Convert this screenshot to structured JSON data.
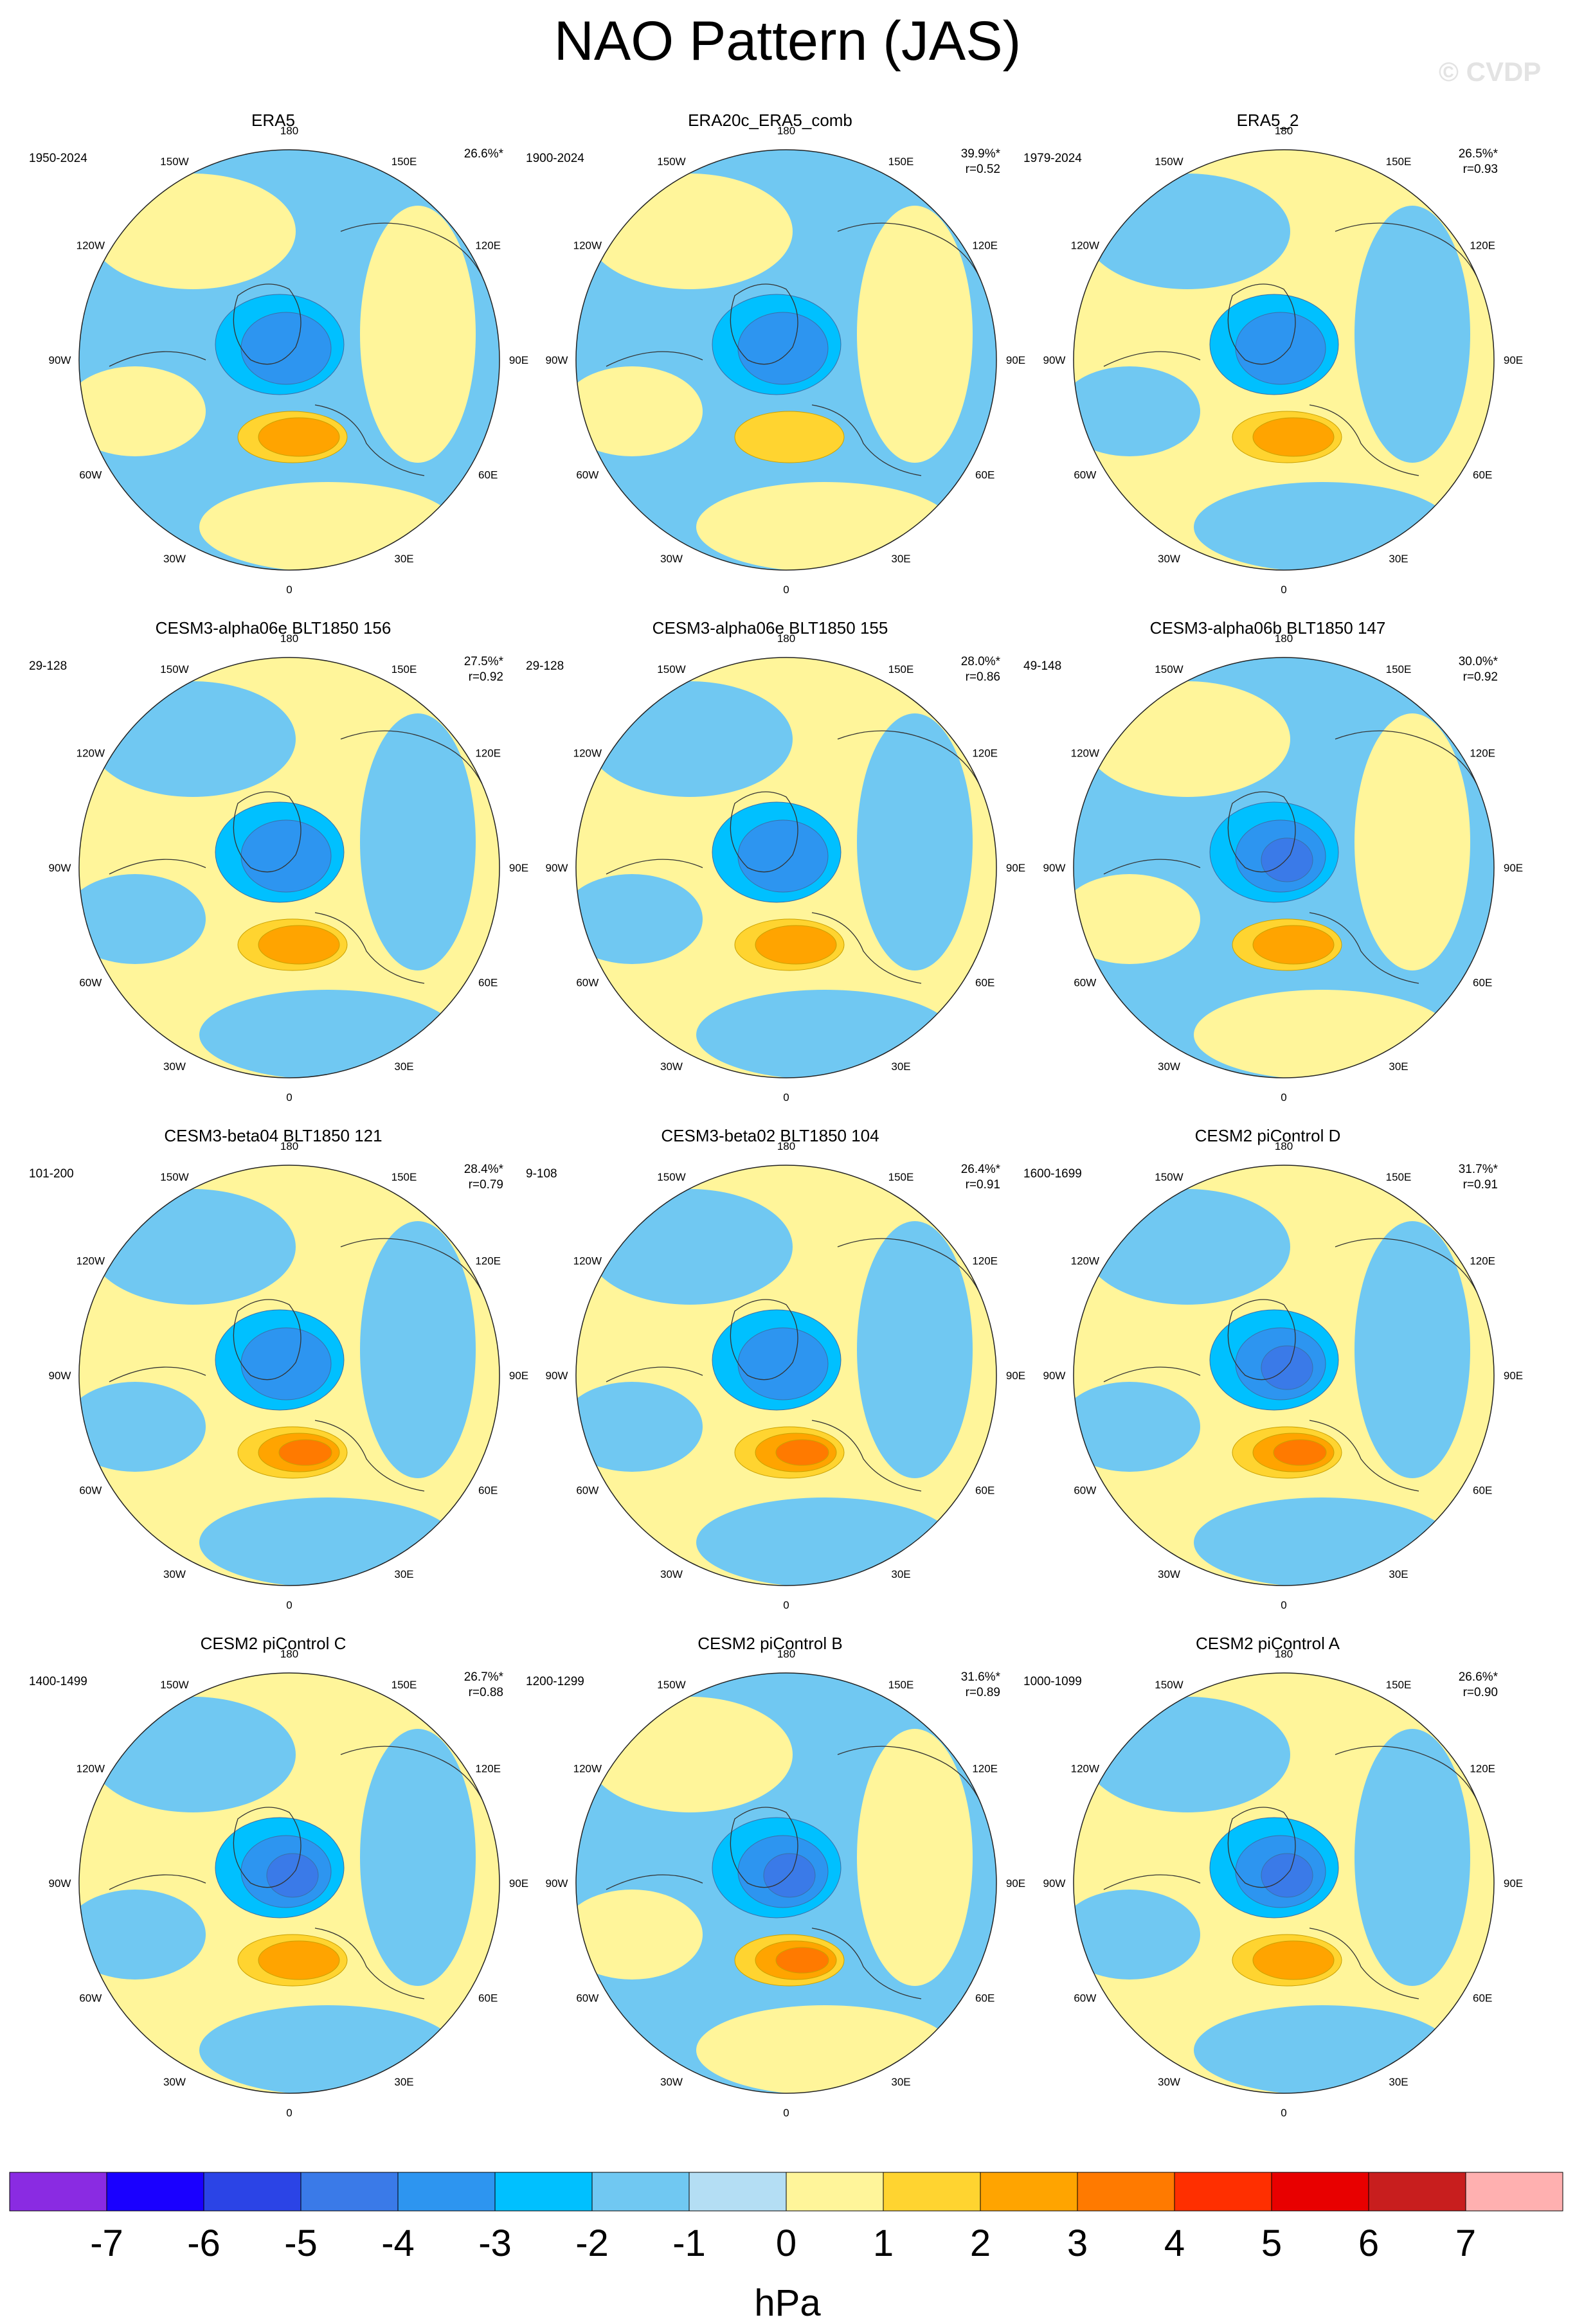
{
  "title": "NAO Pattern (JAS)",
  "watermark": "© CVDP",
  "lon_labels": [
    "180",
    "150E",
    "120E",
    "90E",
    "60E",
    "30E",
    "0",
    "30W",
    "60W",
    "90W",
    "120W",
    "150W"
  ],
  "panels": [
    {
      "title": "ERA5",
      "period": "1950-2024",
      "pct": "26.6%*",
      "r": "",
      "dominant": "blue",
      "min_level": -3,
      "max_level": 2
    },
    {
      "title": "ERA20c_ERA5_comb",
      "period": "1900-2024",
      "pct": "39.9%*",
      "r": "r=0.52",
      "dominant": "blue",
      "min_level": -3,
      "max_level": 1
    },
    {
      "title": "ERA5_2",
      "period": "1979-2024",
      "pct": "26.5%*",
      "r": "r=0.93",
      "dominant": "yellow",
      "min_level": -3,
      "max_level": 2
    },
    {
      "title": "CESM3-alpha06e BLT1850 156",
      "period": "29-128",
      "pct": "27.5%*",
      "r": "r=0.92",
      "dominant": "yellow",
      "min_level": -3,
      "max_level": 2
    },
    {
      "title": "CESM3-alpha06e BLT1850 155",
      "period": "29-128",
      "pct": "28.0%*",
      "r": "r=0.86",
      "dominant": "yellow",
      "min_level": -3,
      "max_level": 2
    },
    {
      "title": "CESM3-alpha06b BLT1850 147",
      "period": "49-148",
      "pct": "30.0%*",
      "r": "r=0.92",
      "dominant": "blue",
      "min_level": -4,
      "max_level": 2
    },
    {
      "title": "CESM3-beta04 BLT1850 121",
      "period": "101-200",
      "pct": "28.4%*",
      "r": "r=0.79",
      "dominant": "yellow",
      "min_level": -3,
      "max_level": 3
    },
    {
      "title": "CESM3-beta02 BLT1850 104",
      "period": "9-108",
      "pct": "26.4%*",
      "r": "r=0.91",
      "dominant": "yellow",
      "min_level": -3,
      "max_level": 3
    },
    {
      "title": "CESM2 piControl D",
      "period": "1600-1699",
      "pct": "31.7%*",
      "r": "r=0.91",
      "dominant": "yellow",
      "min_level": -4,
      "max_level": 3
    },
    {
      "title": "CESM2 piControl C",
      "period": "1400-1499",
      "pct": "26.7%*",
      "r": "r=0.88",
      "dominant": "yellow",
      "min_level": -4,
      "max_level": 2
    },
    {
      "title": "CESM2 piControl B",
      "period": "1200-1299",
      "pct": "31.6%*",
      "r": "r=0.89",
      "dominant": "blue",
      "min_level": -4,
      "max_level": 3
    },
    {
      "title": "CESM2 piControl A",
      "period": "1000-1099",
      "pct": "26.6%*",
      "r": "r=0.90",
      "dominant": "yellow",
      "min_level": -4,
      "max_level": 2
    }
  ],
  "colorbar": {
    "labels": [
      "-7",
      "-6",
      "-5",
      "-4",
      "-3",
      "-2",
      "-1",
      "0",
      "1",
      "2",
      "3",
      "4",
      "5",
      "6",
      "7"
    ],
    "colors": [
      "#8a2be2",
      "#1a00ff",
      "#2b44e6",
      "#3a7ae8",
      "#2d95f0",
      "#00c0ff",
      "#70c8f2",
      "#b4def4",
      "#fff59a",
      "#ffd430",
      "#ffa400",
      "#ff7a00",
      "#ff2f00",
      "#e80000",
      "#c81e1e",
      "#ffb0b0"
    ],
    "units": "hPa"
  }
}
